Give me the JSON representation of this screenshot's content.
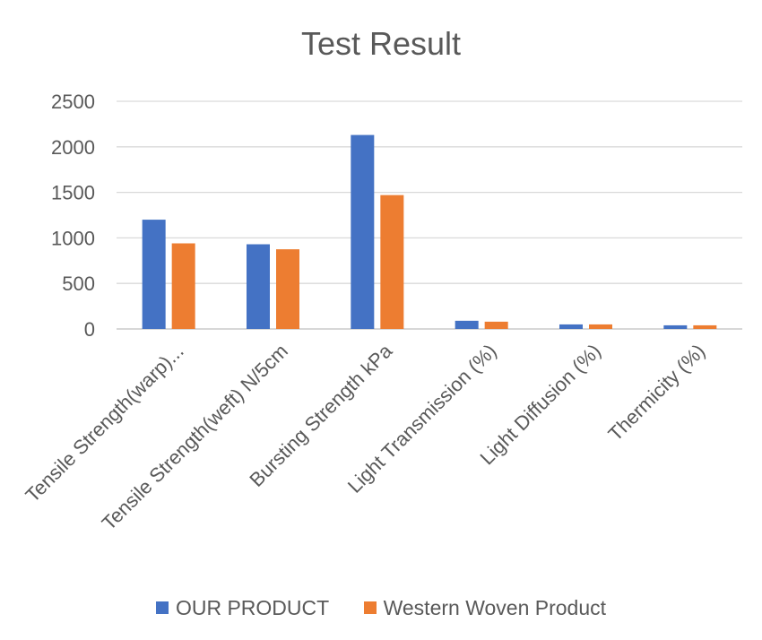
{
  "chart_data": {
    "type": "bar",
    "title": "Test Result",
    "categories": [
      "Tensile Strength(warp)...",
      "Tensile Strength(weft) N/5cm",
      "Bursting Strength kPa",
      "Light Transmission (%)",
      "Light Diffusion (%)",
      "Thermicity (%)"
    ],
    "series": [
      {
        "name": "OUR PRODUCT",
        "color": "#4472C4",
        "values": [
          1200,
          930,
          2130,
          90,
          50,
          40
        ]
      },
      {
        "name": "Western Woven Product",
        "color": "#ED7D31",
        "values": [
          940,
          875,
          1470,
          80,
          50,
          40
        ]
      }
    ],
    "ylim": [
      0,
      2500
    ],
    "yticks": [
      "0",
      "500",
      "1000",
      "1500",
      "2000",
      "2500"
    ],
    "grid": true,
    "legend_position": "bottom"
  }
}
